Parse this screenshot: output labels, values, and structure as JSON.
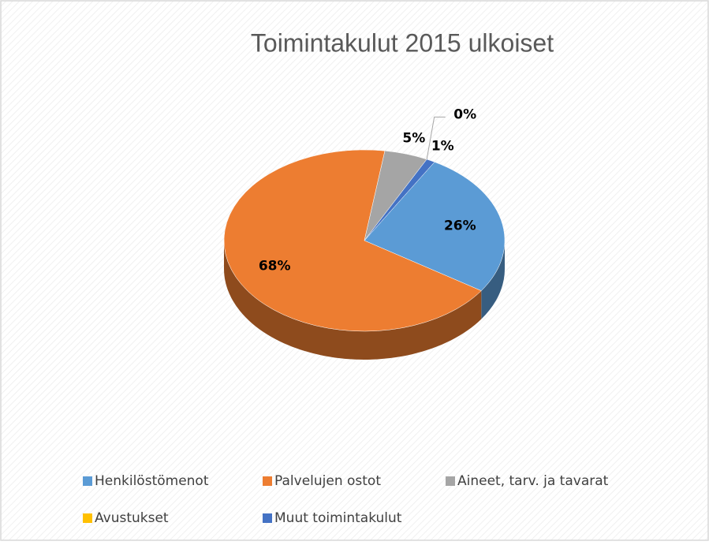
{
  "chart_data": {
    "type": "pie",
    "title": "Toimintakulut 2015 ulkoiset",
    "categories": [
      "Henkilöstömenot",
      "Palvelujen ostot",
      "Aineet, tarv. ja tavarat",
      "Avustukset",
      "Muut toimintakulut"
    ],
    "values": [
      26,
      68,
      5,
      0,
      1
    ],
    "value_labels": [
      "26%",
      "68%",
      "5%",
      "0%",
      "1%"
    ],
    "colors": [
      "#5b9bd5",
      "#ed7d31",
      "#a5a5a5",
      "#ffc000",
      "#4472c4"
    ],
    "legend": "bottom",
    "three_d": true
  }
}
